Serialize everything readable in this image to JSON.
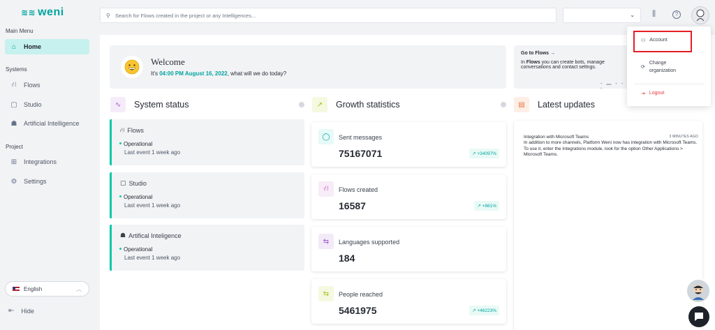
{
  "brand": {
    "name": "weni"
  },
  "sidebar": {
    "main_menu_title": "Main Menu",
    "home": "Home",
    "systems_title": "Systems",
    "systems": [
      {
        "label": "Flows"
      },
      {
        "label": "Studio"
      },
      {
        "label": "Artificial Intelligence"
      }
    ],
    "project_title": "Project",
    "project": [
      {
        "label": "Integrations"
      },
      {
        "label": "Settings"
      }
    ],
    "language": "English",
    "hide": "Hide"
  },
  "topbar": {
    "search_placeholder": "Search for Flows created in the project or any Intelligences..."
  },
  "welcome": {
    "title": "Welcome",
    "prefix": "It's ",
    "time": "04:00 PM August 16, 2022",
    "suffix": ", what will we do today?"
  },
  "goto": {
    "title": "Go to Flows →",
    "text_bold": "Flows",
    "text_pre": "In ",
    "text_post": " you can create bots, manage conversations and contact settngs."
  },
  "system_status": {
    "title": "System status",
    "cards": [
      {
        "name": "Flows",
        "status": "Operational",
        "event": "Last event 1 week ago"
      },
      {
        "name": "Studio",
        "status": "Operational",
        "event": "Last event 1 week ago"
      },
      {
        "name": "Artifical Inteligence",
        "status": "Operational",
        "event": "Last event 1 week ago"
      }
    ]
  },
  "growth": {
    "title": "Growth statistics",
    "cards": [
      {
        "label": "Sent messages",
        "value": "75167071",
        "badge": "+34097%"
      },
      {
        "label": "Flows created",
        "value": "16587",
        "badge": "+861%"
      },
      {
        "label": "Languages supported",
        "value": "184",
        "badge": ""
      },
      {
        "label": "People reached",
        "value": "5461975",
        "badge": "+46223%"
      }
    ]
  },
  "updates": {
    "title": "Latest updates",
    "items": [
      {
        "title": "Integration with Microsoft Teams",
        "time": "3 MINUTES AGO",
        "body": "In addition to more channels, Platform Weni now has integration with Microsoft Teams. To use it, enter the Integrations module, look for the option Other Applications > Microsoft Teams."
      }
    ]
  },
  "account_menu": {
    "account": "Account",
    "change_org": "Change organization",
    "logout": "Logout"
  },
  "colors": {
    "accent": "#00a49f",
    "active_bg": "#c6f1ee",
    "status_green": "#00c9a7",
    "logout_red": "#e5373c",
    "highlight_red": "#e31e24"
  }
}
